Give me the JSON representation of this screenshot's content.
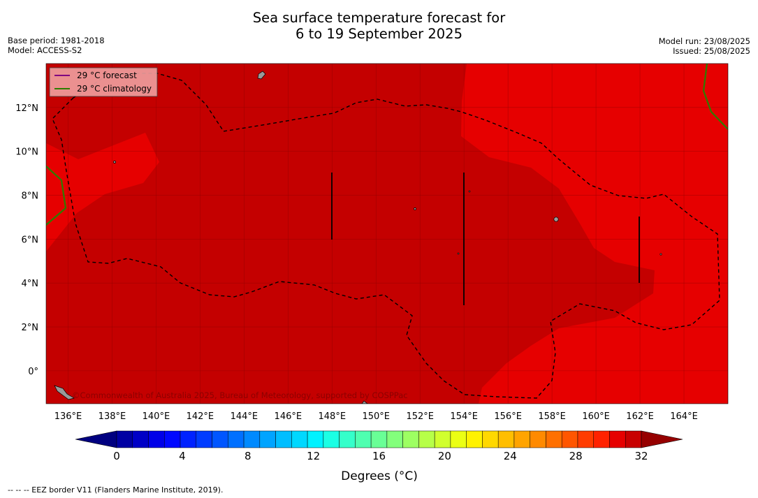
{
  "title_line1": "Sea surface temperature forecast for",
  "title_line2": "6 to 19 September 2025",
  "meta_left": [
    "Base period: 1981-2018",
    "Model: ACCESS-S2"
  ],
  "meta_right": [
    "Model run: 23/08/2025",
    "Issued: 25/08/2025"
  ],
  "map": {
    "lon_range": [
      135,
      166
    ],
    "lat_range": [
      -1.5,
      14
    ],
    "lon_ticks": [
      "136°E",
      "138°E",
      "140°E",
      "142°E",
      "144°E",
      "146°E",
      "148°E",
      "150°E",
      "152°E",
      "154°E",
      "156°E",
      "158°E",
      "160°E",
      "162°E",
      "164°E"
    ],
    "lat_ticks": [
      "12°N",
      "10°N",
      "8°N",
      "6°N",
      "4°N",
      "2°N",
      "0°"
    ],
    "colors": {
      "warmest": "#c40000",
      "warm": "#e60000",
      "land": "#999999"
    }
  },
  "legend": {
    "forecast_label": "29 °C  forecast",
    "climatology_label": "29 °C  climatology",
    "forecast_color": "#800080",
    "climatology_color": "#2e7d00"
  },
  "attribution": "©Commonwealth of Australia 2025, Bureau of Meteorology, supported by COSPPac",
  "colorbar": {
    "ticks": [
      "0",
      "4",
      "8",
      "12",
      "16",
      "20",
      "24",
      "28",
      "32"
    ],
    "label": "Degrees (°C)",
    "colors": [
      "#000080",
      "#0000a3",
      "#0000c6",
      "#0000e8",
      "#0008ff",
      "#0022ff",
      "#003cff",
      "#0056ff",
      "#0070ff",
      "#008aff",
      "#00a4ff",
      "#00beff",
      "#00d8ff",
      "#00f2ff",
      "#1bffe4",
      "#35ffca",
      "#4fffb0",
      "#69ff96",
      "#83ff7c",
      "#9dff62",
      "#b7ff48",
      "#d1ff2e",
      "#ebff14",
      "#fff200",
      "#ffd800",
      "#ffbe00",
      "#ffa400",
      "#ff8a00",
      "#ff7000",
      "#ff5600",
      "#ff3c00",
      "#ff2200",
      "#e60000",
      "#c80000",
      "#960000"
    ]
  },
  "footer": "--  --  -- EEZ border V11 (Flanders Marine Institute, 2019)."
}
